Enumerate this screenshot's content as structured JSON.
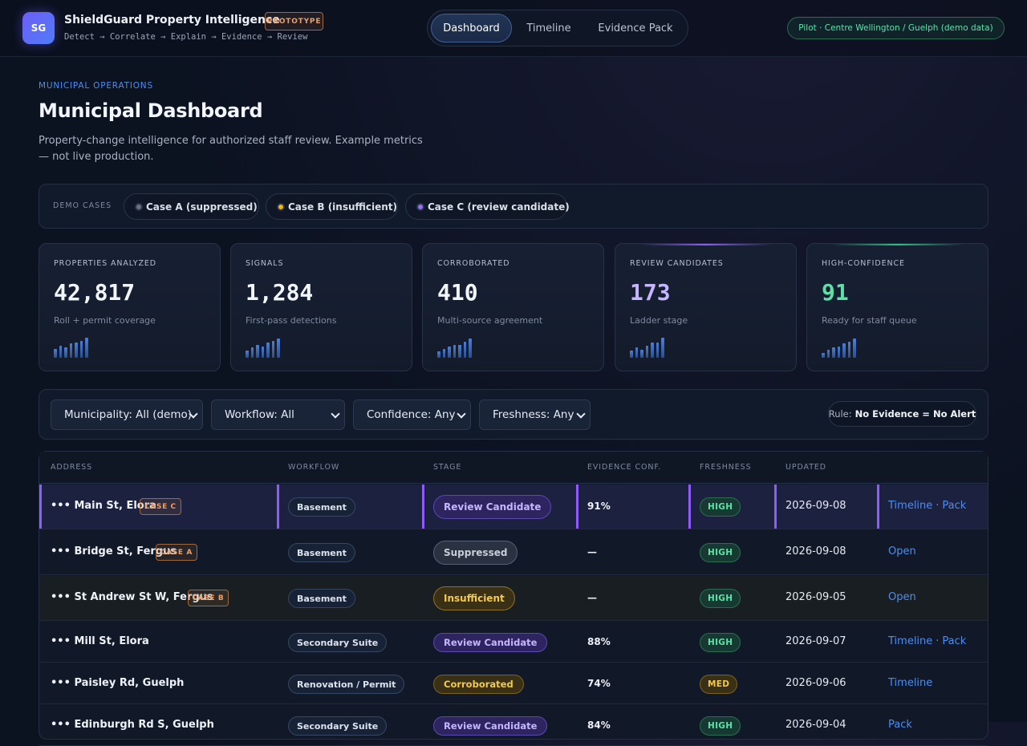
{
  "app": {
    "logo_text": "SG",
    "title": "ShieldGuard Property Intelligence",
    "badge": "PROTOTYPE",
    "flow": "Detect → Correlate → Explain → Evidence → Review",
    "pilot_badge": "Pilot · Centre Wellington / Guelph (demo data)"
  },
  "nav": {
    "tabs": [
      {
        "label": "Dashboard",
        "active": true
      },
      {
        "label": "Timeline",
        "active": false
      },
      {
        "label": "Evidence Pack",
        "active": false
      }
    ]
  },
  "header": {
    "eyebrow": "MUNICIPAL OPERATIONS",
    "title": "Municipal Dashboard",
    "description": "Property-change intelligence for authorized staff review. Example metrics — not live production."
  },
  "demo_cases": {
    "label": "DEMO CASES",
    "items": [
      {
        "label": "Case A (suppressed)",
        "dot_color": "#6b7280"
      },
      {
        "label": "Case B (insufficient)",
        "dot_color": "#f5b700"
      },
      {
        "label": "Case C (review candidate)",
        "dot_color": "#9b6bff"
      }
    ]
  },
  "kpis": [
    {
      "label": "PROPERTIES ANALYZED",
      "value": "42,817",
      "sub": "Roll + permit coverage",
      "color": "#f2f5fa",
      "glow": "",
      "spark": [
        0.45,
        0.6,
        0.5,
        0.7,
        0.75,
        0.85,
        1.0
      ]
    },
    {
      "label": "SIGNALS",
      "value": "1,284",
      "sub": "First-pass detections",
      "color": "#f2f5fa",
      "glow": "",
      "spark": [
        0.35,
        0.5,
        0.65,
        0.55,
        0.75,
        0.85,
        0.95
      ]
    },
    {
      "label": "CORROBORATED",
      "value": "410",
      "sub": "Multi-source agreement",
      "color": "#f2f5fa",
      "glow": "",
      "spark": [
        0.3,
        0.45,
        0.55,
        0.65,
        0.65,
        0.8,
        0.95
      ]
    },
    {
      "label": "REVIEW CANDIDATES",
      "value": "173",
      "sub": "Ladder stage",
      "color": "#c6b6ff",
      "glow": "#8d5df5",
      "spark": [
        0.35,
        0.5,
        0.4,
        0.6,
        0.75,
        0.75,
        1.0
      ]
    },
    {
      "label": "HIGH-CONFIDENCE",
      "value": "91",
      "sub": "Ready for staff queue",
      "color": "#5ee0a8",
      "glow": "#2fbf85",
      "spark": [
        0.25,
        0.4,
        0.5,
        0.55,
        0.7,
        0.8,
        0.95
      ]
    }
  ],
  "filters": {
    "selects": [
      {
        "label": "Municipality: All (demo)"
      },
      {
        "label": "Workflow: All"
      },
      {
        "label": "Confidence: Any"
      },
      {
        "label": "Freshness: Any"
      }
    ],
    "rule_prefix": "Rule:",
    "rule_text": "No Evidence = No Alert"
  },
  "table": {
    "columns": [
      "ADDRESS",
      "WORKFLOW",
      "STAGE",
      "EVIDENCE CONF.",
      "FRESHNESS",
      "UPDATED"
    ],
    "rows": [
      {
        "address": "••• Main St, Elora",
        "case": "CASE C",
        "workflow": "Basement",
        "stage": "Review Candidate",
        "conf": "91%",
        "freshness": "HIGH",
        "updated": "2026-09-08",
        "actions": [
          "Timeline",
          "Pack"
        ]
      },
      {
        "address": "••• Bridge St, Fergus",
        "case": "CASE A",
        "workflow": "Basement",
        "stage": "Suppressed",
        "conf": "—",
        "freshness": "HIGH",
        "updated": "2026-09-08",
        "actions": [
          "Open"
        ]
      },
      {
        "address": "••• St Andrew St W, Fergus",
        "case": "CASE B",
        "workflow": "Basement",
        "stage": "Insufficient",
        "conf": "—",
        "freshness": "HIGH",
        "updated": "2026-09-05",
        "actions": [
          "Open"
        ]
      },
      {
        "address": "••• Mill St, Elora",
        "case": "",
        "workflow": "Secondary Suite",
        "stage": "Review Candidate",
        "conf": "88%",
        "freshness": "HIGH",
        "updated": "2026-09-07",
        "actions": [
          "Timeline",
          "Pack"
        ]
      },
      {
        "address": "••• Paisley Rd, Guelph",
        "case": "",
        "workflow": "Renovation / Permit",
        "stage": "Corroborated",
        "conf": "74%",
        "freshness": "MED",
        "updated": "2026-09-06",
        "actions": [
          "Timeline"
        ]
      },
      {
        "address": "••• Edinburgh Rd S, Guelph",
        "case": "",
        "workflow": "Secondary Suite",
        "stage": "Review Candidate",
        "conf": "84%",
        "freshness": "HIGH",
        "updated": "2026-09-04",
        "actions": [
          "Pack"
        ]
      }
    ]
  }
}
